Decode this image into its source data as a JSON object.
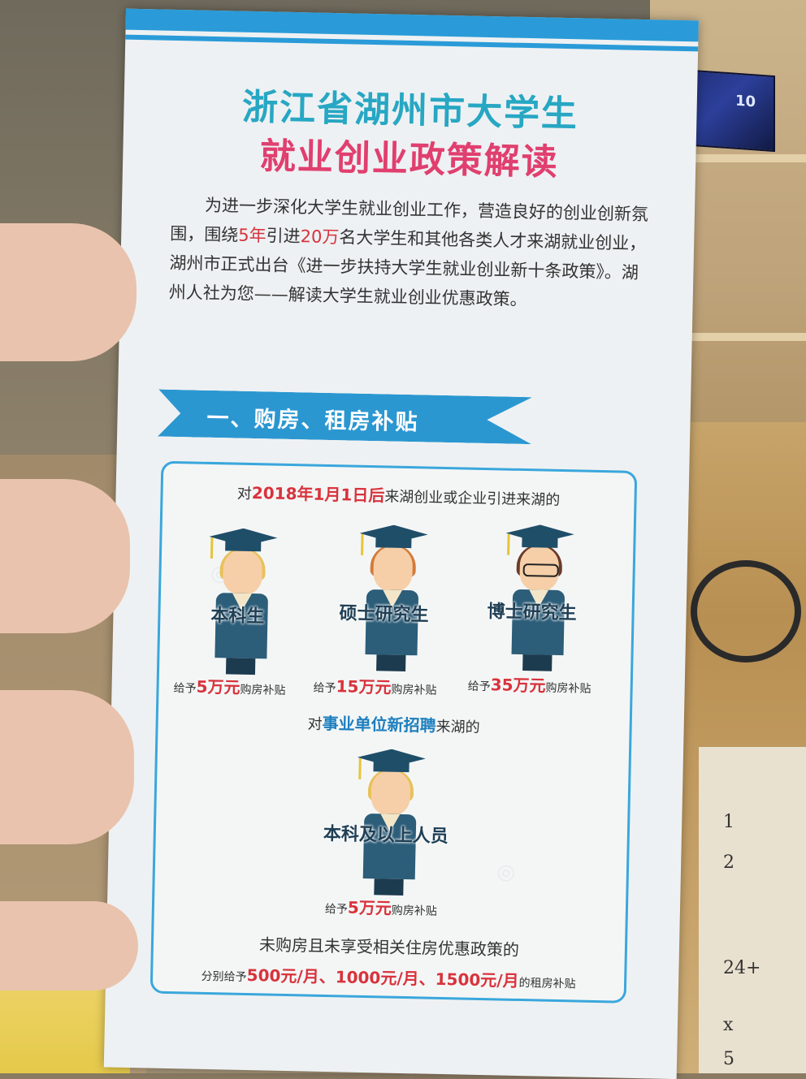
{
  "flyer": {
    "title_line1": "浙江省湖州市大学生",
    "title_line2": "就业创业政策解读",
    "intro": {
      "p1": "为进一步深化大学生就业创业工作，营造良好的创业创新氛围，围绕",
      "n1": "5年",
      "p2": "引进",
      "n2": "20万",
      "p3": "名大学生和其他各类人才来湖就业创业，湖州市正式出台《进一步扶持大学生就业创业新十条政策》。湖州人社为您——解读大学生就业创业优惠政策。"
    },
    "section1_title": "一、购房、租房补贴",
    "panel": {
      "line1_pre": "对",
      "line1_date": "2018年1月1日后",
      "line1_post": "来湖创业或企业引进来湖的",
      "graduates": [
        {
          "label": "本科生",
          "give_pre": "给予",
          "amount": "5万元",
          "give_post": "购房补贴"
        },
        {
          "label": "硕士研究生",
          "give_pre": "给予",
          "amount": "15万元",
          "give_post": "购房补贴"
        },
        {
          "label": "博士研究生",
          "give_pre": "给予",
          "amount": "35万元",
          "give_post": "购房补贴"
        }
      ],
      "line2_pre": "对",
      "line2_highlight": "事业单位新招聘",
      "line2_post": "来湖的",
      "graduate4": {
        "label": "本科及以上人员",
        "give_pre": "给予",
        "amount": "5万元",
        "give_post": "购房补贴"
      },
      "line3": "未购房且未享受相关住房优惠政策的",
      "rent": {
        "pre": "分别给予",
        "a1": "500元/月",
        "sep1": "、",
        "a2": "1000元/月",
        "sep2": "、",
        "a3": "1500元/月",
        "post": "的租房补贴"
      }
    }
  },
  "background": {
    "laptop_text": "10",
    "note_marks": [
      "1",
      "2",
      "24+",
      "x",
      "5"
    ]
  }
}
